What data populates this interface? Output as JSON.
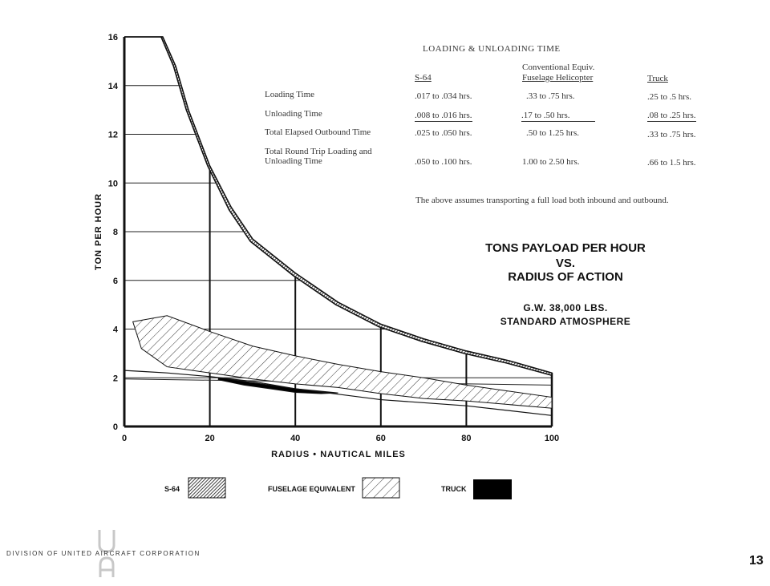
{
  "loading_table": {
    "title": "LOADING & UNLOADING TIME",
    "columns": [
      {
        "line1": "",
        "line2": "S-64"
      },
      {
        "line1": "Conventional Equiv.",
        "line2": "Fuselage Helicopter"
      },
      {
        "line1": "",
        "line2": "Truck"
      }
    ],
    "rows": [
      {
        "label": "Loading Time",
        "label2": "",
        "values": [
          ".017 to .034 hrs.",
          ".33 to  .75 hrs.",
          ".25 to  .5  hrs."
        ]
      },
      {
        "label": "Unloading Time",
        "label2": "",
        "values": [
          ".008 to .016 hrs.",
          ".17 to  .50 hrs.",
          ".08 to  .25 hrs."
        ]
      },
      {
        "label": "Total Elapsed Outbound Time",
        "label2": "",
        "values": [
          ".025 to .050 hrs.",
          ".50 to 1.25 hrs.",
          ".33 to  .75 hrs."
        ]
      },
      {
        "label": "Total Round Trip Loading and",
        "label2": "Unloading Time",
        "values": [
          ".050 to .100 hrs.",
          "1.00 to 2.50 hrs.",
          ".66 to 1.5  hrs."
        ]
      }
    ],
    "note": "The above assumes transporting a full load both inbound and outbound."
  },
  "heading": {
    "line1": "TONS PAYLOAD PER HOUR",
    "line2": "VS.",
    "line3": "RADIUS OF ACTION",
    "line4": "G.W. 38,000 LBS.",
    "line5": "STANDARD ATMOSPHERE"
  },
  "legend": {
    "s64": "S-64",
    "fuselage": "FUSELAGE EQUIVALENT",
    "truck": "TRUCK"
  },
  "footer": {
    "division": "DIVISION OF UNITED AIRCRAFT CORPORATION",
    "page_number": "13"
  },
  "colors": {
    "ink": "#111111",
    "grid": "#222222",
    "truck_fill": "#000000"
  },
  "chart_data": {
    "type": "area",
    "xlabel": "RADIUS • NAUTICAL MILES",
    "ylabel": "TON PER HOUR",
    "xlim": [
      0,
      100
    ],
    "ylim": [
      0,
      16
    ],
    "xticks": [
      0,
      20,
      40,
      60,
      80,
      100
    ],
    "yticks": [
      0,
      2,
      4,
      6,
      8,
      10,
      12,
      14,
      16
    ],
    "grid": true,
    "series": [
      {
        "name": "S-64",
        "pattern": "dense-hatch",
        "upper": {
          "x": [
            0,
            9,
            12,
            15,
            20,
            25,
            30,
            35,
            40,
            50,
            60,
            70,
            80,
            90,
            100
          ],
          "y": [
            16,
            16,
            14.8,
            13.0,
            10.7,
            9.0,
            7.7,
            7.0,
            6.3,
            5.1,
            4.2,
            3.6,
            3.1,
            2.7,
            2.2
          ]
        },
        "lower": {
          "x": [
            0,
            8.6,
            11.5,
            14.5,
            19.5,
            24.5,
            29.5,
            34.5,
            39.5,
            49.5,
            59.5,
            69.5,
            79.5,
            89.5,
            100
          ],
          "y": [
            16,
            16,
            14.8,
            13.0,
            10.7,
            8.9,
            7.6,
            6.9,
            6.2,
            5.0,
            4.1,
            3.5,
            3.0,
            2.6,
            2.1
          ]
        }
      },
      {
        "name": "FUSELAGE EQUIVALENT",
        "pattern": "sparse-hatch",
        "upper": {
          "x": [
            2,
            10,
            20,
            30,
            40,
            50,
            60,
            70,
            80,
            90,
            100
          ],
          "y": [
            4.3,
            4.55,
            3.9,
            3.3,
            2.9,
            2.55,
            2.25,
            2.0,
            1.7,
            1.45,
            1.2
          ]
        },
        "lower": {
          "x": [
            100,
            90,
            80,
            70,
            60,
            50,
            40,
            30,
            20,
            10,
            4,
            2
          ],
          "y": [
            0.75,
            0.9,
            1.05,
            1.15,
            1.35,
            1.6,
            1.75,
            1.95,
            2.2,
            2.45,
            3.2,
            4.3
          ]
        }
      },
      {
        "name": "TRUCK",
        "pattern": "solid",
        "upper": {
          "x": [
            22,
            28,
            34,
            40,
            46,
            50
          ],
          "y": [
            2.0,
            1.85,
            1.7,
            1.55,
            1.45,
            1.38
          ]
        },
        "lower": {
          "x": [
            50,
            46,
            40,
            34,
            28,
            22
          ],
          "y": [
            1.38,
            1.35,
            1.4,
            1.55,
            1.7,
            1.92
          ]
        }
      }
    ],
    "reference_curve": {
      "x": [
        0,
        5,
        10,
        20,
        30,
        40,
        60,
        80,
        100
      ],
      "y": [
        2.3,
        2.25,
        2.2,
        2.05,
        1.85,
        1.55,
        1.1,
        0.85,
        0.45
      ]
    },
    "reference_line_y": 1.95
  }
}
